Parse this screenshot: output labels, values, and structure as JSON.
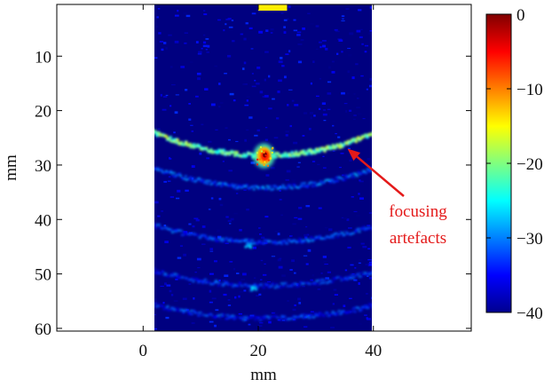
{
  "chart_data": {
    "type": "heatmap",
    "xlabel": "mm",
    "ylabel": "mm",
    "x_ticks": [
      0,
      20,
      40
    ],
    "y_ticks": [
      10,
      20,
      30,
      40,
      50,
      60
    ],
    "xlim": [
      -15,
      57
    ],
    "ylim": [
      60.5,
      0.5
    ],
    "y_reversed": true,
    "image_extent_x": [
      0,
      40
    ],
    "colormap": "jet",
    "colorbar": {
      "range": [
        -40,
        0
      ],
      "ticks": [
        0,
        -10,
        -20,
        -30,
        -40
      ],
      "tick_labels": [
        "0",
        "−10",
        "−20",
        "−30",
        "−40"
      ]
    },
    "features": [
      {
        "kind": "focal_spot",
        "x": 21,
        "y": 28.3,
        "level_db": 0
      },
      {
        "kind": "arc",
        "name": "focusing artefact",
        "center_x": 21,
        "center_y": -18,
        "radius": 46,
        "level_db": -20
      },
      {
        "kind": "faint_arc",
        "center_x": 21,
        "center_y": -18,
        "radius": 52,
        "level_db": -32
      },
      {
        "kind": "faint_arc",
        "center_x": 21,
        "center_y": -18,
        "radius": 62,
        "level_db": -33
      },
      {
        "kind": "faint_arc",
        "center_x": 21,
        "center_y": -18,
        "radius": 70,
        "level_db": -34
      },
      {
        "kind": "faint_arc",
        "center_x": 21,
        "center_y": -18,
        "radius": 76,
        "level_db": -34
      },
      {
        "kind": "speckle",
        "x": 18,
        "y": 44.5,
        "level_db": -28
      },
      {
        "kind": "speckle",
        "x": 19,
        "y": 52.5,
        "level_db": -27
      }
    ],
    "transducer_marker": {
      "x_range": [
        20,
        25
      ],
      "color": "#ffee00"
    },
    "annotation": {
      "lines": [
        "focusing",
        "artefacts"
      ],
      "color": "#e41a1a",
      "arrow_to": {
        "x": 35.5,
        "y": 27
      }
    }
  }
}
